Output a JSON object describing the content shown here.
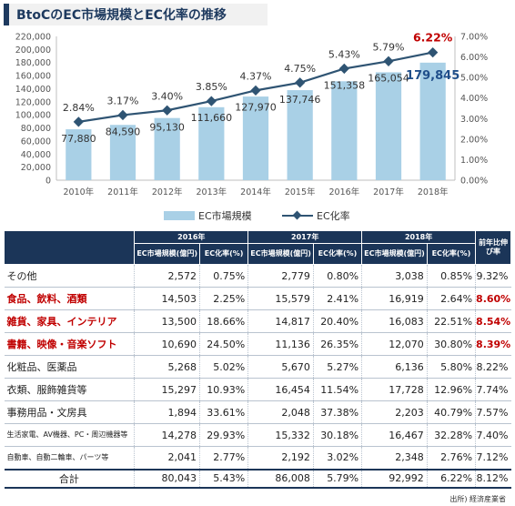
{
  "title": "BtoCのEC市場規模とEC化率の推移",
  "chart_data": {
    "type": "bar",
    "categories": [
      "2010年",
      "2011年",
      "2012年",
      "2013年",
      "2014年",
      "2015年",
      "2016年",
      "2017年",
      "2018年"
    ],
    "series": [
      {
        "name": "EC市場規模",
        "type": "bar",
        "axis": "left",
        "values": [
          77880,
          84590,
          95130,
          111660,
          127970,
          137746,
          151358,
          165054,
          179845
        ],
        "labels": [
          "77,880",
          "84,590",
          "95,130",
          "111,660",
          "127,970",
          "137,746",
          "151,358",
          "165,054",
          "179,845"
        ]
      },
      {
        "name": "EC化率",
        "type": "line",
        "axis": "right",
        "values": [
          2.84,
          3.17,
          3.4,
          3.85,
          4.37,
          4.75,
          5.43,
          5.79,
          6.22
        ],
        "labels": [
          "2.84%",
          "3.17%",
          "3.40%",
          "3.85%",
          "4.37%",
          "4.75%",
          "5.43%",
          "5.79%",
          "6.22%"
        ]
      }
    ],
    "y_left": {
      "min": 0,
      "max": 220000,
      "step": 20000,
      "ticks": [
        "0",
        "20,000",
        "40,000",
        "60,000",
        "80,000",
        "100,000",
        "120,000",
        "140,000",
        "160,000",
        "180,000",
        "200,000",
        "220,000"
      ]
    },
    "y_right": {
      "min": 0,
      "max": 7,
      "step": 1,
      "ticks": [
        "0.00%",
        "1.00%",
        "2.00%",
        "3.00%",
        "4.00%",
        "5.00%",
        "6.00%",
        "7.00%"
      ]
    },
    "legend_position": "bottom",
    "grid": false
  },
  "colors": {
    "bar": "#a9d0e6",
    "line": "#2f5473",
    "header": "#1b3558",
    "highlight": "#c00000",
    "last_bar_label": "#1f4e8a"
  },
  "table": {
    "years": [
      "2016年",
      "2017年",
      "2018年"
    ],
    "growth_header": "前年比伸び率",
    "sub_value": "EC市場規模(億円)",
    "sub_rate": "EC化率(%)",
    "rows": [
      {
        "cat": "その他",
        "v": [
          "2,572",
          "2,779",
          "3,038"
        ],
        "r": [
          "0.75%",
          "0.80%",
          "0.85%"
        ],
        "g": "9.32%",
        "red": false,
        "small": false
      },
      {
        "cat": "食品、飲料、酒類",
        "v": [
          "14,503",
          "15,579",
          "16,919"
        ],
        "r": [
          "2.25%",
          "2.41%",
          "2.64%"
        ],
        "g": "8.60%",
        "red": true,
        "small": false
      },
      {
        "cat": "雑貨、家具、インテリア",
        "v": [
          "13,500",
          "14,817",
          "16,083"
        ],
        "r": [
          "18.66%",
          "20.40%",
          "22.51%"
        ],
        "g": "8.54%",
        "red": true,
        "small": false
      },
      {
        "cat": "書籍、映像・音楽ソフト",
        "v": [
          "10,690",
          "11,136",
          "12,070"
        ],
        "r": [
          "24.50%",
          "26.35%",
          "30.80%"
        ],
        "g": "8.39%",
        "red": true,
        "small": false
      },
      {
        "cat": "化粧品、医薬品",
        "v": [
          "5,268",
          "5,670",
          "6,136"
        ],
        "r": [
          "5.02%",
          "5.27%",
          "5.80%"
        ],
        "g": "8.22%",
        "red": false,
        "small": false
      },
      {
        "cat": "衣類、服飾雑貨等",
        "v": [
          "15,297",
          "16,454",
          "17,728"
        ],
        "r": [
          "10.93%",
          "11.54%",
          "12.96%"
        ],
        "g": "7.74%",
        "red": false,
        "small": false
      },
      {
        "cat": "事務用品・文房具",
        "v": [
          "1,894",
          "2,048",
          "2,203"
        ],
        "r": [
          "33.61%",
          "37.38%",
          "40.79%"
        ],
        "g": "7.57%",
        "red": false,
        "small": false
      },
      {
        "cat": "生活家電、AV機器、PC・周辺機器等",
        "v": [
          "14,278",
          "15,332",
          "16,467"
        ],
        "r": [
          "29.93%",
          "30.18%",
          "32.28%"
        ],
        "g": "7.40%",
        "red": false,
        "small": true
      },
      {
        "cat": "自動車、自動二輪車、パーツ等",
        "v": [
          "2,041",
          "2,192",
          "2,348"
        ],
        "r": [
          "2.77%",
          "3.02%",
          "2.76%"
        ],
        "g": "7.12%",
        "red": false,
        "small": true
      }
    ],
    "total": {
      "cat": "合計",
      "v": [
        "80,043",
        "86,008",
        "92,992"
      ],
      "r": [
        "5.43%",
        "5.79%",
        "6.22%"
      ],
      "g": "8.12%"
    }
  },
  "source": "出所) 経済産業省"
}
